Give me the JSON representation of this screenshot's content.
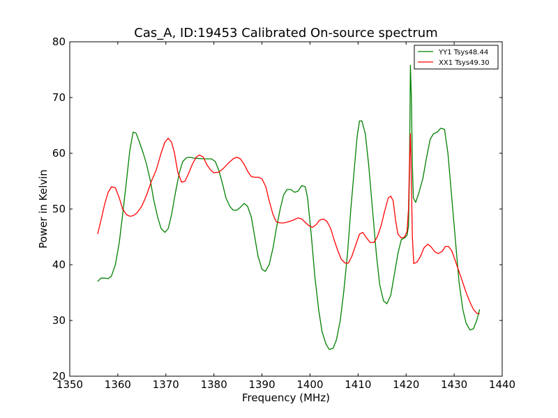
{
  "chart_data": {
    "type": "line",
    "title": "Cas_A, ID:19453 Calibrated On-source spectrum",
    "xlabel": "Frequency (MHz)",
    "ylabel": "Power in Kelvin",
    "xlim": [
      1350,
      1440
    ],
    "ylim": [
      20,
      80
    ],
    "xticks": [
      1350,
      1360,
      1370,
      1380,
      1390,
      1400,
      1410,
      1420,
      1430,
      1440
    ],
    "yticks": [
      20,
      30,
      40,
      50,
      60,
      70,
      80
    ],
    "grid": false,
    "legend_position": "top-right",
    "series": [
      {
        "name": "YY1 Tsys48.44",
        "color": "#008000",
        "points": [
          [
            1355.8,
            37.0
          ],
          [
            1356.5,
            37.6
          ],
          [
            1357.3,
            37.6
          ],
          [
            1358.0,
            37.5
          ],
          [
            1358.7,
            38.0
          ],
          [
            1359.5,
            40.0
          ],
          [
            1360.3,
            44.0
          ],
          [
            1361.0,
            49.0
          ],
          [
            1361.8,
            55.0
          ],
          [
            1362.5,
            60.5
          ],
          [
            1363.2,
            63.8
          ],
          [
            1363.8,
            63.6
          ],
          [
            1364.5,
            62.0
          ],
          [
            1365.3,
            60.0
          ],
          [
            1366.0,
            58.0
          ],
          [
            1366.8,
            55.0
          ],
          [
            1367.5,
            51.5
          ],
          [
            1368.3,
            48.5
          ],
          [
            1369.0,
            46.5
          ],
          [
            1369.8,
            45.8
          ],
          [
            1370.5,
            46.5
          ],
          [
            1371.2,
            49.0
          ],
          [
            1372.0,
            53.0
          ],
          [
            1372.8,
            56.5
          ],
          [
            1373.5,
            58.5
          ],
          [
            1374.3,
            59.2
          ],
          [
            1375.0,
            59.3
          ],
          [
            1376.0,
            59.1
          ],
          [
            1378.0,
            59.0
          ],
          [
            1379.5,
            59.0
          ],
          [
            1380.3,
            58.5
          ],
          [
            1381.0,
            57.0
          ],
          [
            1381.8,
            54.5
          ],
          [
            1382.5,
            52.0
          ],
          [
            1383.3,
            50.5
          ],
          [
            1384.0,
            49.8
          ],
          [
            1384.8,
            49.8
          ],
          [
            1385.5,
            50.3
          ],
          [
            1386.3,
            51.0
          ],
          [
            1387.0,
            50.5
          ],
          [
            1387.8,
            48.5
          ],
          [
            1388.5,
            45.0
          ],
          [
            1389.2,
            41.5
          ],
          [
            1390.0,
            39.2
          ],
          [
            1390.7,
            38.8
          ],
          [
            1391.5,
            40.0
          ],
          [
            1392.3,
            43.0
          ],
          [
            1393.0,
            46.5
          ],
          [
            1393.8,
            50.0
          ],
          [
            1394.5,
            52.5
          ],
          [
            1395.2,
            53.5
          ],
          [
            1396.0,
            53.5
          ],
          [
            1396.8,
            53.0
          ],
          [
            1397.5,
            53.2
          ],
          [
            1398.3,
            54.2
          ],
          [
            1399.0,
            54.0
          ],
          [
            1399.5,
            52.0
          ],
          [
            1400.3,
            45.0
          ],
          [
            1401.0,
            38.0
          ],
          [
            1401.8,
            32.0
          ],
          [
            1402.5,
            28.0
          ],
          [
            1403.3,
            25.8
          ],
          [
            1404.0,
            24.8
          ],
          [
            1404.8,
            25.0
          ],
          [
            1405.5,
            26.5
          ],
          [
            1406.3,
            30.0
          ],
          [
            1407.0,
            35.0
          ],
          [
            1407.8,
            42.0
          ],
          [
            1408.5,
            50.0
          ],
          [
            1409.3,
            58.0
          ],
          [
            1409.8,
            63.0
          ],
          [
            1410.3,
            65.8
          ],
          [
            1410.8,
            65.8
          ],
          [
            1411.5,
            63.5
          ],
          [
            1412.2,
            58.0
          ],
          [
            1413.0,
            50.0
          ],
          [
            1413.8,
            42.0
          ],
          [
            1414.5,
            36.5
          ],
          [
            1415.3,
            33.5
          ],
          [
            1416.0,
            33.0
          ],
          [
            1416.8,
            34.5
          ],
          [
            1417.5,
            38.0
          ],
          [
            1418.3,
            42.0
          ],
          [
            1419.0,
            44.5
          ],
          [
            1419.7,
            44.8
          ],
          [
            1420.2,
            45.3
          ],
          [
            1420.5,
            47.0
          ],
          [
            1420.7,
            56.0
          ],
          [
            1420.9,
            75.8
          ],
          [
            1421.1,
            70.0
          ],
          [
            1421.3,
            58.0
          ],
          [
            1421.5,
            52.0
          ],
          [
            1422.0,
            51.2
          ],
          [
            1422.7,
            53.0
          ],
          [
            1423.5,
            55.5
          ],
          [
            1424.2,
            59.0
          ],
          [
            1425.0,
            62.5
          ],
          [
            1425.7,
            63.5
          ],
          [
            1426.5,
            63.8
          ],
          [
            1427.2,
            64.5
          ],
          [
            1428.0,
            64.3
          ],
          [
            1428.7,
            60.0
          ],
          [
            1429.5,
            52.0
          ],
          [
            1430.3,
            44.0
          ],
          [
            1431.0,
            37.0
          ],
          [
            1431.8,
            32.0
          ],
          [
            1432.5,
            29.5
          ],
          [
            1433.3,
            28.3
          ],
          [
            1434.0,
            28.5
          ],
          [
            1434.7,
            30.0
          ],
          [
            1435.3,
            32.0
          ]
        ]
      },
      {
        "name": "XX1 Tsys49.30",
        "color": "#ff0000",
        "points": [
          [
            1355.8,
            45.5
          ],
          [
            1356.5,
            48.0
          ],
          [
            1357.3,
            51.0
          ],
          [
            1358.0,
            53.0
          ],
          [
            1358.7,
            54.0
          ],
          [
            1359.5,
            53.8
          ],
          [
            1360.3,
            52.0
          ],
          [
            1361.0,
            50.0
          ],
          [
            1361.8,
            49.0
          ],
          [
            1362.5,
            48.7
          ],
          [
            1363.2,
            48.8
          ],
          [
            1364.0,
            49.3
          ],
          [
            1365.0,
            50.5
          ],
          [
            1366.0,
            52.5
          ],
          [
            1367.0,
            55.0
          ],
          [
            1368.0,
            57.0
          ],
          [
            1369.0,
            60.0
          ],
          [
            1369.8,
            62.0
          ],
          [
            1370.5,
            62.7
          ],
          [
            1371.2,
            62.0
          ],
          [
            1371.8,
            60.0
          ],
          [
            1372.5,
            56.5
          ],
          [
            1373.3,
            54.8
          ],
          [
            1374.0,
            55.0
          ],
          [
            1374.8,
            56.5
          ],
          [
            1375.5,
            58.0
          ],
          [
            1376.3,
            59.3
          ],
          [
            1377.0,
            59.7
          ],
          [
            1377.8,
            59.3
          ],
          [
            1378.5,
            58.0
          ],
          [
            1379.3,
            57.0
          ],
          [
            1380.0,
            56.5
          ],
          [
            1381.0,
            56.6
          ],
          [
            1382.0,
            57.3
          ],
          [
            1383.0,
            58.2
          ],
          [
            1384.0,
            59.0
          ],
          [
            1384.8,
            59.3
          ],
          [
            1385.5,
            59.0
          ],
          [
            1386.3,
            58.0
          ],
          [
            1387.0,
            56.8
          ],
          [
            1387.8,
            55.8
          ],
          [
            1388.5,
            55.7
          ],
          [
            1389.3,
            55.7
          ],
          [
            1390.0,
            55.4
          ],
          [
            1390.8,
            54.0
          ],
          [
            1391.5,
            51.5
          ],
          [
            1392.3,
            49.0
          ],
          [
            1393.0,
            47.7
          ],
          [
            1393.8,
            47.5
          ],
          [
            1394.5,
            47.5
          ],
          [
            1395.5,
            47.7
          ],
          [
            1396.5,
            48.0
          ],
          [
            1397.5,
            48.4
          ],
          [
            1398.3,
            48.2
          ],
          [
            1399.0,
            47.6
          ],
          [
            1399.8,
            47.0
          ],
          [
            1400.5,
            46.7
          ],
          [
            1401.3,
            47.2
          ],
          [
            1402.0,
            48.0
          ],
          [
            1402.8,
            48.2
          ],
          [
            1403.5,
            47.8
          ],
          [
            1404.3,
            46.5
          ],
          [
            1405.0,
            44.5
          ],
          [
            1405.8,
            42.5
          ],
          [
            1406.5,
            41.0
          ],
          [
            1407.3,
            40.3
          ],
          [
            1408.0,
            40.3
          ],
          [
            1408.7,
            41.5
          ],
          [
            1409.5,
            43.5
          ],
          [
            1410.3,
            45.5
          ],
          [
            1411.0,
            45.8
          ],
          [
            1411.8,
            44.8
          ],
          [
            1412.5,
            44.0
          ],
          [
            1413.3,
            44.0
          ],
          [
            1414.0,
            45.0
          ],
          [
            1414.8,
            47.0
          ],
          [
            1415.5,
            49.5
          ],
          [
            1416.3,
            52.0
          ],
          [
            1416.8,
            52.3
          ],
          [
            1417.3,
            51.5
          ],
          [
            1417.8,
            48.0
          ],
          [
            1418.3,
            45.5
          ],
          [
            1419.0,
            44.8
          ],
          [
            1419.7,
            45.0
          ],
          [
            1420.2,
            46.0
          ],
          [
            1420.5,
            50.0
          ],
          [
            1420.7,
            58.0
          ],
          [
            1420.9,
            63.5
          ],
          [
            1421.1,
            55.0
          ],
          [
            1421.3,
            45.0
          ],
          [
            1421.6,
            40.2
          ],
          [
            1422.3,
            40.5
          ],
          [
            1423.0,
            41.5
          ],
          [
            1423.7,
            43.0
          ],
          [
            1424.5,
            43.7
          ],
          [
            1425.2,
            43.2
          ],
          [
            1426.0,
            42.3
          ],
          [
            1426.7,
            42.0
          ],
          [
            1427.5,
            42.4
          ],
          [
            1428.2,
            43.3
          ],
          [
            1428.8,
            43.3
          ],
          [
            1429.5,
            42.5
          ],
          [
            1430.2,
            40.8
          ],
          [
            1431.0,
            38.8
          ],
          [
            1431.8,
            36.8
          ],
          [
            1432.5,
            35.0
          ],
          [
            1433.3,
            33.3
          ],
          [
            1434.0,
            32.0
          ],
          [
            1434.7,
            31.3
          ],
          [
            1435.3,
            31.2
          ]
        ]
      }
    ]
  }
}
